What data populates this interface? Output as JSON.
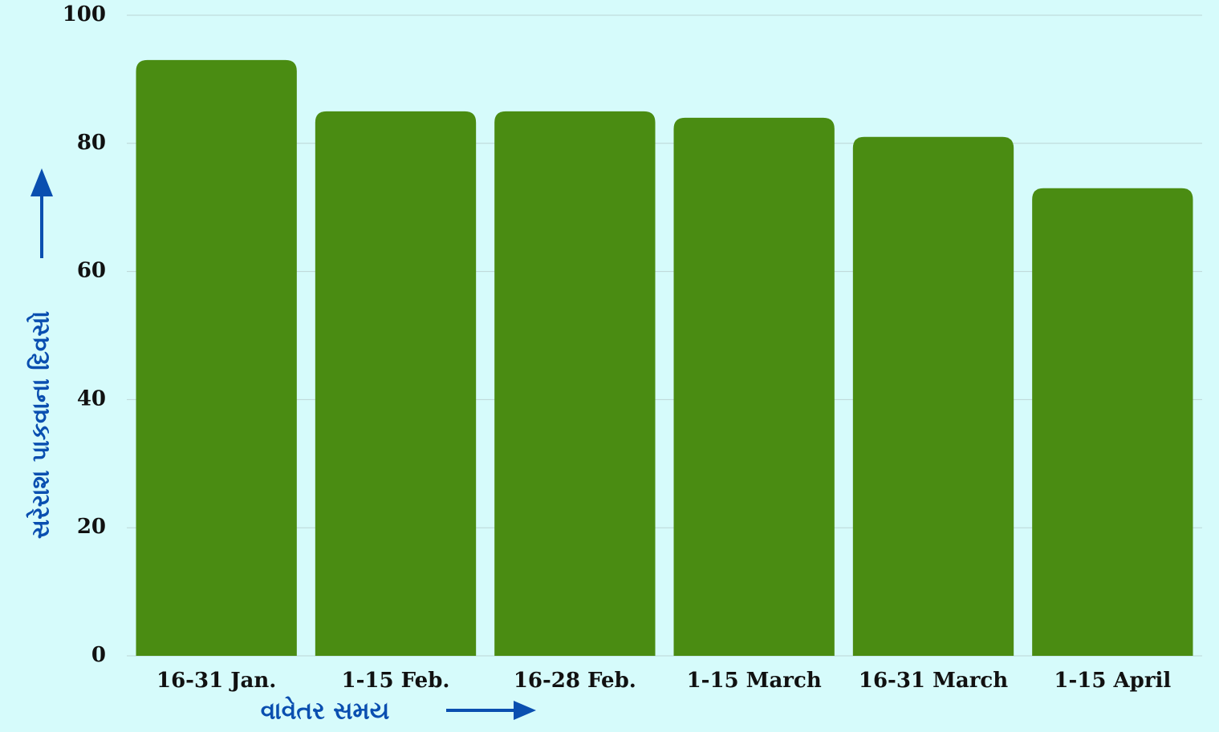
{
  "chart_data": {
    "type": "bar",
    "x_label": "વાવેતર સમય",
    "y_label": "સરેરાશ પાકવાના દિવસો",
    "categories": [
      "16-31 Jan.",
      "1-15 Feb.",
      "16-28 Feb.",
      "1-15 March",
      "16-31 March",
      "1-15 April"
    ],
    "values": [
      93,
      85,
      85,
      84,
      81,
      73
    ],
    "color": "#4a8c12",
    "ylim": [
      0,
      100
    ],
    "yticks": [
      0,
      20,
      40,
      60,
      80,
      100
    ],
    "grid": true
  }
}
